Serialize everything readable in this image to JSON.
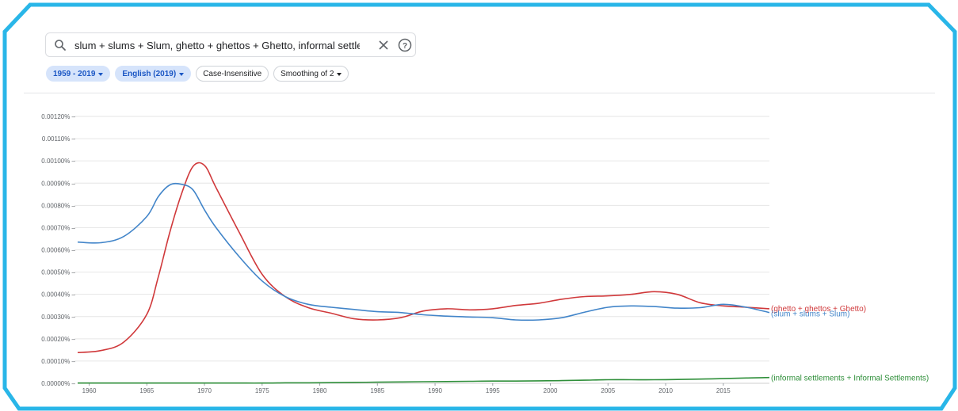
{
  "search": {
    "value": "slum + slums + Slum, ghetto + ghettos + Ghetto, informal settlements + Informal Settlements",
    "icon": "search-icon",
    "clear_icon": "close-icon",
    "help_icon": "help-circle-icon"
  },
  "filters": {
    "year_range": "1959 - 2019",
    "corpus": "English (2019)",
    "case": "Case-Insensitive",
    "smoothing": "Smoothing of 2"
  },
  "colors": {
    "accent": "#1a73e8",
    "frame": "#29b6e8",
    "slum": "#4285c9",
    "ghetto": "#d0393b",
    "informal": "#2f8f3a",
    "grid": "#e6e6e6"
  },
  "chart_data": {
    "type": "line",
    "grid": true,
    "legend": "right-end-labels",
    "xlim": [
      1959,
      2019
    ],
    "ylim": [
      0,
      0.0012
    ],
    "y_ticks": [
      "0.00000%",
      "0.00010%",
      "0.00020%",
      "0.00030%",
      "0.00040%",
      "0.00050%",
      "0.00060%",
      "0.00070%",
      "0.00080%",
      "0.00090%",
      "0.00100%",
      "0.00110%",
      "0.00120%"
    ],
    "x_ticks": [
      "1960",
      "1965",
      "1970",
      "1975",
      "1980",
      "1985",
      "1990",
      "1995",
      "2000",
      "2005",
      "2010",
      "2015"
    ],
    "x": [
      1959,
      1961,
      1963,
      1965,
      1966,
      1967,
      1968,
      1969,
      1970,
      1971,
      1973,
      1975,
      1977,
      1979,
      1981,
      1983,
      1985,
      1987,
      1989,
      1991,
      1993,
      1995,
      1997,
      1999,
      2001,
      2003,
      2005,
      2007,
      2009,
      2011,
      2013,
      2015,
      2017,
      2019
    ],
    "series": [
      {
        "name": "(ghetto + ghettos + Ghetto)",
        "color": "#d0393b",
        "values": [
          0.000138,
          0.000147,
          0.000185,
          0.00031,
          0.00048,
          0.00068,
          0.00085,
          0.000975,
          0.00098,
          0.00088,
          0.00068,
          0.00049,
          0.00039,
          0.00034,
          0.000315,
          0.00029,
          0.000285,
          0.000295,
          0.000325,
          0.000335,
          0.00033,
          0.000335,
          0.00035,
          0.00036,
          0.000378,
          0.00039,
          0.000393,
          0.0004,
          0.000412,
          0.0004,
          0.000362,
          0.000348,
          0.000342,
          0.000335
        ]
      },
      {
        "name": "(slum + slums + Slum)",
        "color": "#4285c9",
        "values": [
          0.000635,
          0.000632,
          0.00066,
          0.00075,
          0.00084,
          0.000892,
          0.000895,
          0.00087,
          0.00078,
          0.0007,
          0.00057,
          0.00046,
          0.00039,
          0.000355,
          0.000342,
          0.000332,
          0.000322,
          0.000318,
          0.000308,
          0.000302,
          0.000298,
          0.000295,
          0.000285,
          0.000285,
          0.000295,
          0.00032,
          0.000342,
          0.000348,
          0.000345,
          0.000338,
          0.00034,
          0.000355,
          0.000342,
          0.000318
        ]
      },
      {
        "name": "(informal settlements + Informal Settlements)",
        "color": "#2f8f3a",
        "values": [
          1e-06,
          1e-06,
          1e-06,
          1e-06,
          1e-06,
          1e-06,
          1e-06,
          1e-06,
          1e-06,
          1e-06,
          1e-06,
          1e-06,
          2e-06,
          2e-06,
          3e-06,
          4e-06,
          5e-06,
          6e-06,
          7e-06,
          8e-06,
          9e-06,
          1e-05,
          1e-05,
          1.1e-05,
          1.2e-05,
          1.4e-05,
          1.6e-05,
          1.6e-05,
          1.6e-05,
          1.7e-05,
          1.9e-05,
          2.1e-05,
          2.4e-05,
          2.6e-05
        ]
      }
    ]
  }
}
